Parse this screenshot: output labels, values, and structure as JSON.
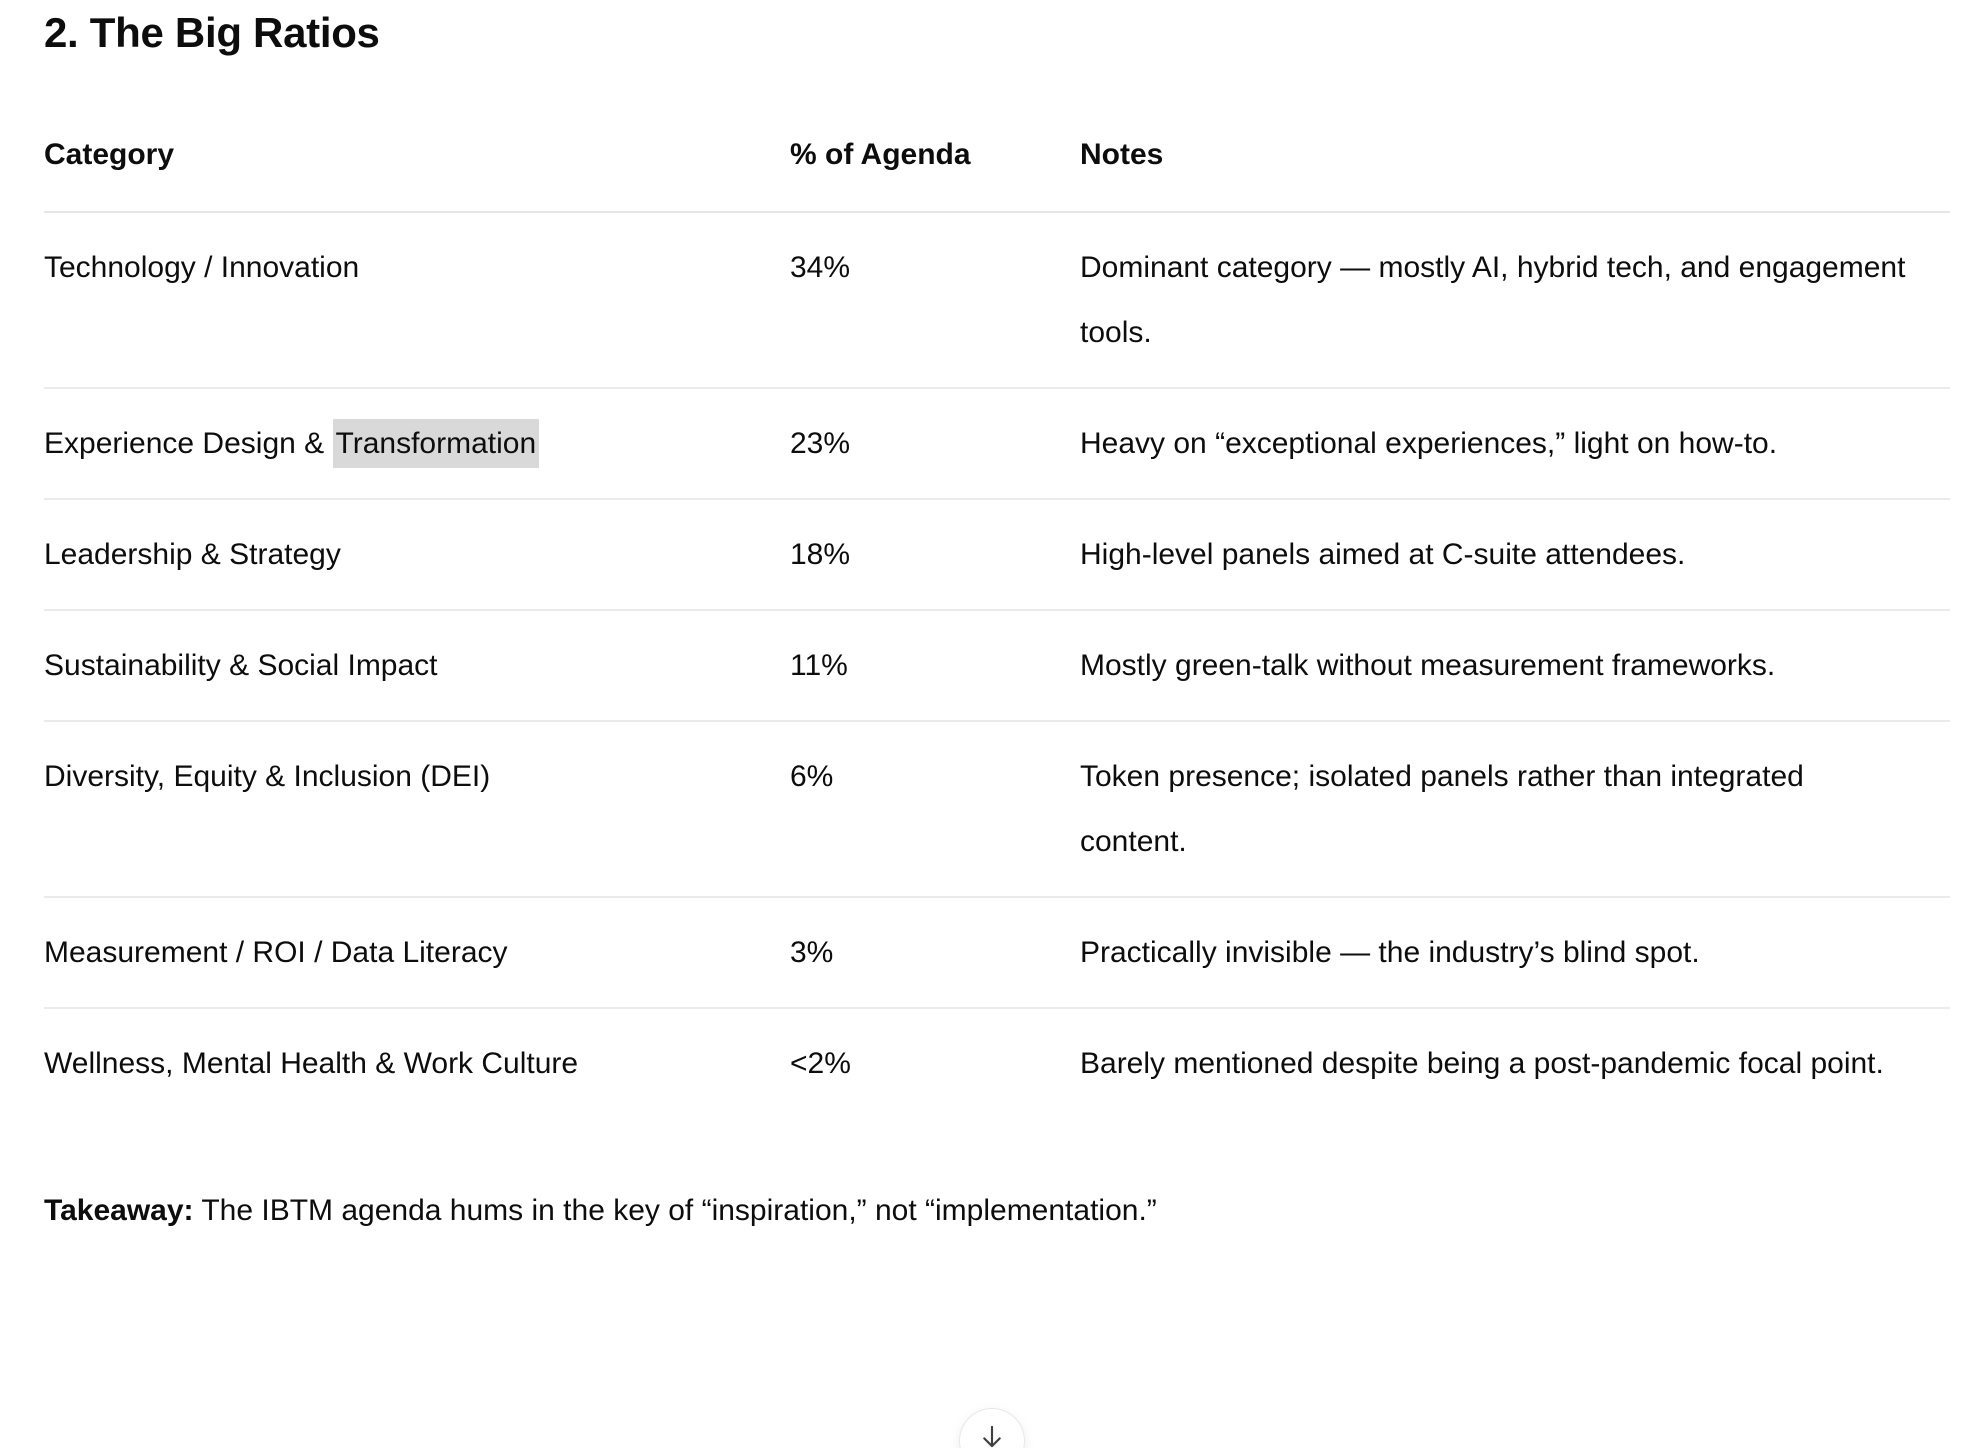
{
  "page": {
    "heading": "2. The Big Ratios"
  },
  "table": {
    "columns": [
      "Category",
      "% of Agenda",
      "Notes"
    ],
    "rows": [
      {
        "category": [
          {
            "text": "Technology / Innovation",
            "highlight": false
          }
        ],
        "pct": "34%",
        "notes": "Dominant category — mostly AI, hybrid tech, and engagement tools."
      },
      {
        "category": [
          {
            "text": "Experience Design & ",
            "highlight": false
          },
          {
            "text": "Transformation",
            "highlight": true
          }
        ],
        "pct": "23%",
        "notes": "Heavy on “exceptional experiences,” light on how-to."
      },
      {
        "category": [
          {
            "text": "Leadership & Strategy",
            "highlight": false
          }
        ],
        "pct": "18%",
        "notes": "High-level panels aimed at C-suite attendees."
      },
      {
        "category": [
          {
            "text": "Sustainability & Social Impact",
            "highlight": false
          }
        ],
        "pct": "11%",
        "notes": "Mostly green-talk without measurement frameworks."
      },
      {
        "category": [
          {
            "text": "Diversity, Equity & Inclusion (DEI)",
            "highlight": false
          }
        ],
        "pct": "6%",
        "notes": "Token presence; isolated panels rather than integrated content."
      },
      {
        "category": [
          {
            "text": "Measurement / ROI / Data Literacy",
            "highlight": false
          }
        ],
        "pct": "3%",
        "notes": "Practically invisible — the industry’s blind spot."
      },
      {
        "category": [
          {
            "text": "Wellness, Mental Health & Work Culture",
            "highlight": false
          }
        ],
        "pct": "<2%",
        "notes": "Barely mentioned despite being a post-pandemic focal point."
      }
    ]
  },
  "takeaway": {
    "label": "Takeaway:",
    "text": " The IBTM agenda hums in the key of “inspiration,” not “implementation.”"
  },
  "highlight_color": "#d9d9d9",
  "text_color": "#0d0d0d",
  "divider_color": "#ebebeb",
  "scroll_button": {
    "icon": "arrow-down-icon"
  }
}
